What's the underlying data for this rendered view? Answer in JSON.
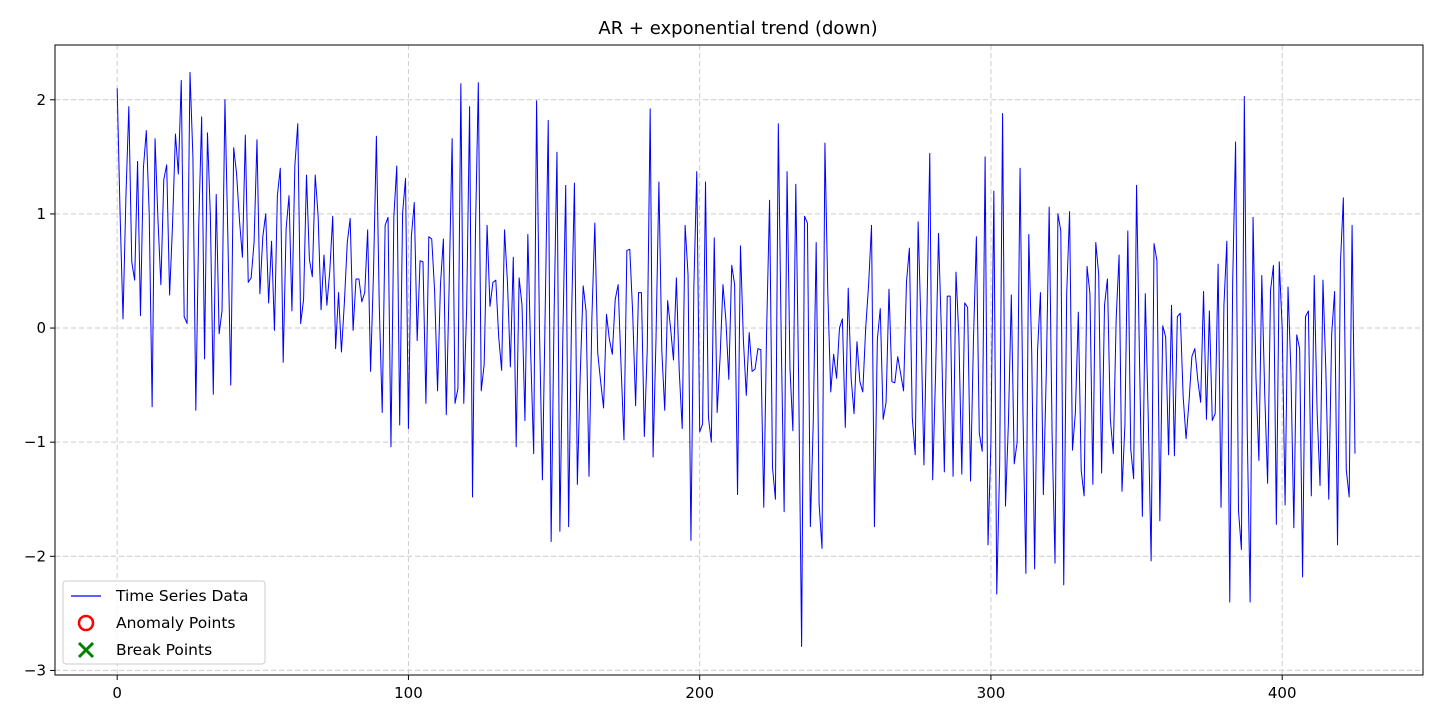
{
  "chart_data": {
    "type": "line",
    "title": "AR + exponential trend (down)",
    "xlabel": "",
    "ylabel": "",
    "xlim": [
      -21.35,
      448.35
    ],
    "ylim": [
      -3.04,
      2.48
    ],
    "x_ticks": [
      0,
      100,
      200,
      300,
      400
    ],
    "y_ticks": [
      -3,
      -2,
      -1,
      0,
      1,
      2
    ],
    "grid": true,
    "legend_position": "lower-left",
    "colors": {
      "series": "#0000ff",
      "anomaly": "#ff0000",
      "break": "#008000",
      "grid": "#cccccc",
      "axis": "#000000"
    },
    "series": [
      {
        "name": "Time Series Data",
        "x_start": 0,
        "x_step": 1,
        "values": [
          2.1,
          1.0,
          0.08,
          1.15,
          1.94,
          0.58,
          0.42,
          1.46,
          0.11,
          1.4,
          1.73,
          1.0,
          -0.69,
          1.66,
          0.95,
          0.38,
          1.3,
          1.43,
          0.29,
          0.9,
          1.7,
          1.35,
          2.17,
          0.1,
          0.04,
          2.24,
          1.5,
          -0.72,
          0.9,
          1.85,
          -0.27,
          1.71,
          0.98,
          -0.58,
          1.17,
          -0.05,
          0.15,
          2.0,
          0.8,
          -0.5,
          1.58,
          1.35,
          0.94,
          0.62,
          1.69,
          0.4,
          0.44,
          0.75,
          1.65,
          0.3,
          0.8,
          1.0,
          0.22,
          0.76,
          -0.02,
          1.16,
          1.4,
          -0.3,
          0.87,
          1.16,
          0.15,
          1.42,
          1.79,
          0.04,
          0.25,
          1.34,
          0.6,
          0.45,
          1.34,
          0.98,
          0.16,
          0.64,
          0.2,
          0.5,
          0.98,
          -0.18,
          0.31,
          -0.21,
          0.22,
          0.75,
          0.96,
          -0.02,
          0.43,
          0.43,
          0.23,
          0.31,
          0.86,
          -0.38,
          0.48,
          1.68,
          0.18,
          -0.74,
          0.9,
          0.97,
          -1.04,
          0.98,
          1.42,
          -0.85,
          1.01,
          1.31,
          -0.88,
          0.8,
          1.1,
          -0.11,
          0.59,
          0.58,
          -0.66,
          0.8,
          0.78,
          0.32,
          -0.55,
          0.38,
          0.78,
          -0.76,
          0.4,
          1.66,
          -0.66,
          -0.53,
          2.14,
          -0.66,
          0.18,
          1.94,
          -1.48,
          0.82,
          2.15,
          -0.55,
          -0.32,
          0.9,
          0.19,
          0.4,
          0.42,
          -0.08,
          -0.37,
          0.86,
          0.4,
          -0.34,
          0.62,
          -1.04,
          0.44,
          0.2,
          -0.81,
          0.82,
          -0.24,
          -1.1,
          1.99,
          -0.02,
          -1.33,
          0.22,
          1.82,
          -1.87,
          0.1,
          1.54,
          -1.78,
          -0.1,
          1.25,
          -1.74,
          0.08,
          1.27,
          -1.37,
          -0.4,
          0.37,
          0.15,
          -1.3,
          0.1,
          0.92,
          -0.22,
          -0.47,
          -0.7,
          0.12,
          -0.1,
          -0.23,
          0.25,
          0.38,
          -0.33,
          -0.98,
          0.68,
          0.69,
          0.13,
          -0.68,
          0.31,
          0.31,
          -0.95,
          -0.18,
          1.92,
          -1.13,
          -0.1,
          1.28,
          -0.2,
          -0.72,
          0.24,
          0.0,
          -0.28,
          0.44,
          -0.39,
          -0.88,
          0.9,
          0.47,
          -1.86,
          0.36,
          1.37,
          -0.91,
          -0.84,
          1.28,
          -0.78,
          -1.0,
          0.79,
          -0.74,
          -0.26,
          0.38,
          0.07,
          -0.45,
          0.55,
          0.38,
          -1.46,
          0.72,
          -0.1,
          -0.59,
          -0.04,
          -0.38,
          -0.36,
          -0.18,
          -0.19,
          -1.57,
          0.0,
          1.12,
          -1.22,
          -1.5,
          1.79,
          -0.1,
          -1.61,
          1.37,
          -0.35,
          -0.9,
          1.26,
          -0.49,
          -2.79,
          0.98,
          0.92,
          -1.74,
          -0.82,
          0.75,
          -1.54,
          -1.93,
          1.62,
          0.3,
          -0.56,
          -0.23,
          -0.44,
          0.0,
          0.08,
          -0.87,
          0.35,
          -0.44,
          -0.75,
          -0.12,
          -0.47,
          -0.56,
          0.0,
          0.38,
          0.9,
          -1.74,
          -0.1,
          0.17,
          -0.8,
          -0.65,
          0.34,
          -0.47,
          -0.48,
          -0.25,
          -0.4,
          -0.55,
          0.4,
          0.7,
          -0.79,
          -1.11,
          0.93,
          0.0,
          -1.2,
          0.1,
          1.53,
          -1.33,
          -0.4,
          0.83,
          -0.05,
          -1.26,
          0.28,
          0.28,
          -1.3,
          0.49,
          -0.08,
          -1.28,
          0.22,
          0.18,
          -1.34,
          -0.1,
          0.8,
          -0.92,
          -1.08,
          1.5,
          -1.9,
          -1.0,
          1.2,
          -2.33,
          -1.2,
          1.88,
          -1.56,
          -0.83,
          0.29,
          -1.19,
          -1.0,
          1.4,
          -0.75,
          -2.15,
          0.82,
          -0.21,
          -2.11,
          -0.2,
          0.31,
          -1.46,
          -0.4,
          1.06,
          -0.93,
          -2.06,
          1.0,
          0.85,
          -2.25,
          0.29,
          1.02,
          -1.07,
          -0.74,
          0.14,
          -1.25,
          -1.47,
          0.54,
          0.3,
          -1.37,
          0.75,
          0.47,
          -1.27,
          0.2,
          0.43,
          -0.8,
          -1.1,
          0.08,
          0.64,
          -1.43,
          -0.85,
          0.85,
          -1.06,
          -1.32,
          1.25,
          -0.26,
          -1.65,
          0.3,
          -0.77,
          -2.04,
          0.74,
          0.59,
          -1.69,
          0.02,
          -0.08,
          -1.11,
          0.2,
          -1.12,
          0.1,
          0.13,
          -0.6,
          -0.97,
          -0.65,
          -0.25,
          -0.18,
          -0.45,
          -0.65,
          0.32,
          -0.8,
          0.15,
          -0.81,
          -0.75,
          0.56,
          -1.57,
          0.2,
          0.76,
          -2.4,
          0.4,
          1.63,
          -1.6,
          -1.94,
          2.03,
          -0.9,
          -2.4,
          0.97,
          -0.44,
          -1.16,
          0.46,
          -0.57,
          -1.36,
          0.33,
          0.55,
          -1.72,
          0.58,
          0.0,
          -1.55,
          0.36,
          -0.38,
          -1.75,
          -0.06,
          -0.18,
          -2.18,
          0.1,
          0.15,
          -1.47,
          0.46,
          -0.74,
          -1.38,
          0.42,
          -0.38,
          -1.5,
          -0.05,
          0.32,
          -1.9,
          0.57,
          1.14,
          -1.24,
          -1.48,
          0.9,
          -1.1
        ]
      },
      {
        "name": "Anomaly Points",
        "values": []
      },
      {
        "name": "Break Points",
        "values": []
      }
    ]
  }
}
